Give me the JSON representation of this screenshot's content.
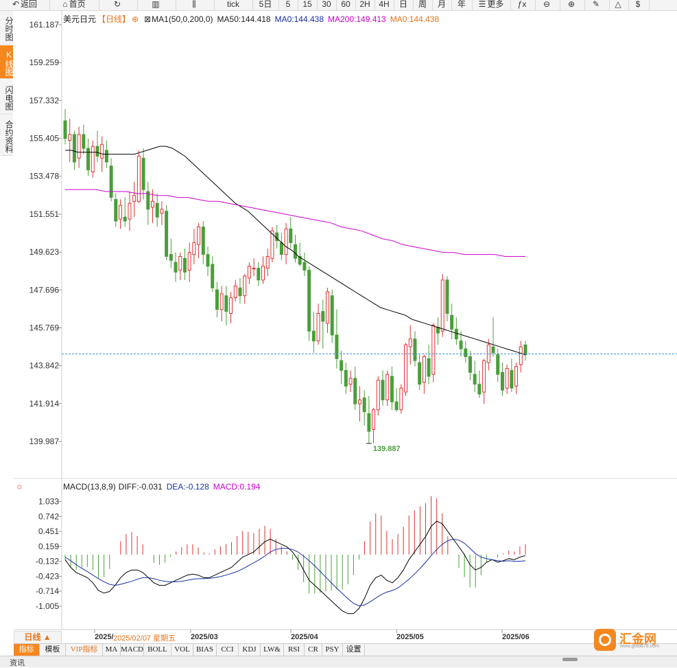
{
  "toolbar": {
    "buttons": [
      {
        "label": "返回",
        "icon": "back-icon"
      },
      {
        "label": "首页",
        "icon": "home-icon"
      },
      {
        "label": "",
        "icon": "refresh-icon"
      },
      {
        "label": "",
        "icon": "candlestick-icon"
      },
      {
        "label": "",
        "icon": "kline-icon"
      },
      {
        "label": "tick",
        "icon": ""
      },
      {
        "label": "5日",
        "icon": ""
      },
      {
        "label": "5",
        "icon": ""
      },
      {
        "label": "15",
        "icon": ""
      },
      {
        "label": "30",
        "icon": ""
      },
      {
        "label": "60",
        "icon": ""
      },
      {
        "label": "2H",
        "icon": ""
      },
      {
        "label": "4H",
        "icon": ""
      },
      {
        "label": "日",
        "icon": ""
      },
      {
        "label": "周",
        "icon": ""
      },
      {
        "label": "月",
        "icon": ""
      },
      {
        "label": "年",
        "icon": ""
      },
      {
        "label": "更多",
        "icon": "menu-icon"
      },
      {
        "label": "",
        "icon": "fx-icon"
      },
      {
        "label": "",
        "icon": "zoom-out-icon"
      },
      {
        "label": "",
        "icon": "zoom-in-icon"
      },
      {
        "label": "",
        "icon": "draw-line-icon"
      },
      {
        "label": "",
        "icon": "triangle-icon"
      },
      {
        "label": "",
        "icon": "dollar-icon"
      }
    ]
  },
  "sidebar": {
    "tabs": [
      {
        "label": "分时图",
        "active": false
      },
      {
        "label": "K线图",
        "active": true
      },
      {
        "label": "闪电图",
        "active": false
      },
      {
        "label": "合约资料",
        "active": false
      }
    ]
  },
  "main_legend": {
    "symbol": "美元日元",
    "period": "【日线】",
    "ma_params": "MA1(50,0,200,0)",
    "ma50": "MA50:144.418",
    "ma0": "MA0:144.438",
    "ma200": "MA200:149.413",
    "ma0b": "MA0:144.438"
  },
  "macd_legend": {
    "params": "MACD(13,8,9)",
    "diff": "DIFF:-0.031",
    "dea": "DEA:-0.128",
    "macd": "MACD:0.194"
  },
  "bottom": {
    "period_label": "日线 ▲",
    "date_tip": "2025/02/07 星期五",
    "indicator_tabs": [
      "指标",
      "模板",
      "VIP指标",
      "MA",
      "MACD",
      "BOLL",
      "VOL",
      "BIAS",
      "CCI",
      "KDJ",
      "LW&",
      "RSI",
      "CR",
      "PSY",
      "设置"
    ],
    "logo_text": "汇金网",
    "logo_url": "www.gold678.com",
    "status_text": "资讯"
  },
  "chart_data": [
    {
      "type": "candlestick",
      "title": "美元日元 日线",
      "y_ticks": [
        "161.187",
        "159.259",
        "157.332",
        "155.405",
        "153.478",
        "151.551",
        "149.623",
        "147.696",
        "145.769",
        "143.842",
        "141.914",
        "139.987"
      ],
      "ylim": [
        139.987,
        161.187
      ],
      "x_ticks": [
        "2025/02",
        "2025/03",
        "2025/04",
        "2025/05",
        "2025/06"
      ],
      "last_price": 144.438,
      "low_annotation": {
        "label": "139.887",
        "value": 139.887
      },
      "colors": {
        "up": "#e03030",
        "down": "#4a9e3b",
        "ma50": "#000000",
        "ma200": "#cc00cc"
      },
      "candles": [
        [
          156.3,
          156.9,
          155.1,
          155.4
        ],
        [
          155.3,
          156.4,
          154.2,
          155.6
        ],
        [
          155.6,
          155.8,
          153.8,
          154.2
        ],
        [
          154.4,
          156.0,
          153.9,
          155.6
        ],
        [
          155.6,
          156.1,
          154.6,
          154.9
        ],
        [
          154.9,
          155.4,
          153.5,
          153.8
        ],
        [
          153.7,
          155.3,
          153.4,
          155.0
        ],
        [
          155.0,
          155.8,
          154.2,
          154.5
        ],
        [
          154.4,
          155.5,
          153.7,
          155.1
        ],
        [
          154.8,
          155.3,
          153.9,
          154.2
        ],
        [
          154.0,
          154.4,
          152.2,
          152.4
        ],
        [
          152.3,
          152.6,
          150.9,
          151.2
        ],
        [
          151.3,
          152.3,
          150.8,
          152.0
        ],
        [
          151.4,
          152.4,
          150.9,
          151.2
        ],
        [
          151.3,
          152.7,
          150.7,
          152.1
        ],
        [
          152.2,
          153.2,
          151.4,
          152.5
        ],
        [
          152.2,
          154.8,
          152.1,
          154.5
        ],
        [
          154.4,
          154.9,
          152.3,
          152.8
        ],
        [
          152.7,
          153.2,
          151.0,
          151.8
        ],
        [
          151.9,
          152.8,
          151.1,
          152.2
        ],
        [
          152.1,
          152.6,
          150.9,
          151.4
        ],
        [
          151.6,
          152.2,
          151.0,
          151.8
        ],
        [
          151.7,
          152.0,
          149.2,
          149.4
        ],
        [
          149.5,
          150.3,
          148.8,
          149.2
        ],
        [
          149.1,
          149.6,
          148.1,
          148.6
        ],
        [
          148.7,
          149.6,
          148.2,
          149.4
        ],
        [
          149.3,
          149.8,
          148.2,
          148.6
        ],
        [
          148.7,
          150.1,
          148.1,
          149.6
        ],
        [
          149.5,
          150.8,
          149.0,
          150.1
        ],
        [
          150.0,
          151.1,
          149.3,
          150.9
        ],
        [
          150.9,
          151.2,
          149.0,
          149.5
        ],
        [
          149.5,
          149.9,
          148.4,
          148.9
        ],
        [
          149.0,
          149.4,
          147.6,
          147.8
        ],
        [
          147.7,
          148.1,
          146.3,
          146.7
        ],
        [
          146.7,
          147.9,
          146.1,
          147.5
        ],
        [
          147.4,
          147.9,
          145.9,
          146.6
        ],
        [
          146.5,
          147.6,
          146.0,
          147.3
        ],
        [
          147.3,
          148.2,
          147.1,
          147.9
        ],
        [
          147.8,
          148.3,
          147.0,
          147.4
        ],
        [
          147.4,
          148.5,
          147.0,
          148.4
        ],
        [
          148.3,
          149.1,
          148.0,
          148.9
        ],
        [
          148.8,
          149.3,
          148.4,
          148.8
        ],
        [
          148.8,
          149.1,
          147.9,
          148.2
        ],
        [
          148.2,
          149.4,
          148.0,
          148.9
        ],
        [
          148.8,
          149.8,
          148.4,
          149.4
        ],
        [
          149.3,
          150.9,
          149.1,
          150.7
        ],
        [
          150.6,
          151.0,
          149.8,
          150.2
        ],
        [
          150.1,
          150.6,
          149.2,
          149.5
        ],
        [
          149.5,
          151.1,
          149.0,
          150.8
        ],
        [
          150.8,
          151.4,
          149.8,
          150.1
        ],
        [
          150.0,
          150.5,
          149.1,
          149.3
        ],
        [
          149.4,
          150.1,
          148.9,
          149.0
        ],
        [
          149.1,
          149.6,
          148.4,
          148.7
        ],
        [
          148.7,
          148.9,
          145.1,
          145.6
        ],
        [
          145.6,
          146.6,
          144.5,
          145.1
        ],
        [
          145.1,
          147.0,
          144.9,
          146.5
        ],
        [
          146.6,
          147.2,
          144.7,
          146.1
        ],
        [
          146.0,
          147.8,
          145.5,
          147.6
        ],
        [
          147.4,
          147.7,
          145.0,
          145.4
        ],
        [
          145.4,
          146.7,
          143.7,
          144.2
        ],
        [
          144.1,
          144.6,
          142.9,
          143.6
        ],
        [
          143.6,
          144.0,
          142.4,
          142.8
        ],
        [
          142.9,
          143.6,
          142.5,
          143.2
        ],
        [
          143.2,
          143.8,
          141.6,
          141.9
        ],
        [
          141.9,
          142.8,
          141.0,
          142.1
        ],
        [
          142.2,
          142.6,
          140.8,
          141.5
        ],
        [
          141.4,
          142.3,
          139.9,
          140.5
        ],
        [
          140.6,
          141.7,
          139.9,
          141.6
        ],
        [
          141.6,
          143.3,
          141.3,
          143.1
        ],
        [
          143.1,
          143.6,
          141.8,
          142.1
        ],
        [
          142.1,
          143.6,
          141.8,
          143.4
        ],
        [
          143.3,
          143.8,
          141.6,
          142.0
        ],
        [
          142.0,
          142.7,
          141.5,
          141.6
        ],
        [
          141.6,
          142.9,
          141.4,
          142.7
        ],
        [
          142.5,
          145.0,
          142.3,
          144.9
        ],
        [
          144.8,
          145.9,
          143.9,
          145.2
        ],
        [
          145.2,
          145.6,
          143.8,
          144.1
        ],
        [
          144.0,
          144.4,
          142.6,
          142.9
        ],
        [
          143.0,
          144.4,
          142.4,
          144.3
        ],
        [
          144.2,
          144.9,
          142.9,
          143.3
        ],
        [
          143.4,
          146.0,
          143.0,
          145.9
        ],
        [
          145.8,
          146.3,
          144.9,
          145.5
        ],
        [
          145.6,
          148.5,
          145.3,
          148.2
        ],
        [
          148.2,
          148.4,
          146.1,
          146.5
        ],
        [
          146.4,
          147.0,
          145.2,
          145.7
        ],
        [
          145.7,
          146.3,
          144.9,
          145.2
        ],
        [
          145.1,
          145.6,
          144.3,
          144.7
        ],
        [
          144.7,
          145.1,
          144.0,
          144.3
        ],
        [
          144.3,
          144.6,
          143.1,
          143.5
        ],
        [
          143.4,
          144.1,
          142.5,
          142.9
        ],
        [
          142.9,
          143.6,
          142.2,
          142.4
        ],
        [
          142.5,
          144.2,
          141.9,
          144.1
        ],
        [
          144.0,
          145.2,
          143.6,
          144.9
        ],
        [
          144.8,
          146.3,
          144.3,
          144.5
        ],
        [
          144.4,
          144.7,
          143.0,
          143.4
        ],
        [
          143.5,
          144.0,
          142.3,
          142.6
        ],
        [
          142.7,
          143.9,
          142.4,
          143.7
        ],
        [
          143.6,
          144.2,
          142.5,
          142.7
        ],
        [
          142.8,
          144.0,
          142.4,
          143.8
        ],
        [
          143.9,
          145.1,
          143.5,
          144.8
        ],
        [
          144.9,
          145.1,
          144.1,
          144.4
        ]
      ],
      "ma50": [
        154.8,
        154.8,
        154.7,
        154.7,
        154.7,
        154.7,
        154.6,
        154.6,
        154.6,
        154.6,
        154.6,
        154.6,
        154.7,
        154.8,
        154.9,
        155.0,
        155.0,
        154.9,
        154.7,
        154.5,
        154.2,
        153.9,
        153.6,
        153.3,
        153.0,
        152.7,
        152.4,
        152.1,
        151.9,
        151.7,
        151.4,
        151.1,
        150.8,
        150.5,
        150.2,
        149.9,
        149.7,
        149.4,
        149.2,
        149.0,
        148.8,
        148.6,
        148.4,
        148.2,
        148.0,
        147.8,
        147.6,
        147.4,
        147.2,
        147.0,
        146.8,
        146.7,
        146.6,
        146.5,
        146.4,
        146.2,
        146.1,
        146.0,
        145.9,
        145.8,
        145.7,
        145.6,
        145.5,
        145.4,
        145.3,
        145.2,
        145.1,
        145.0,
        144.9,
        144.8,
        144.7,
        144.6,
        144.5,
        144.4
      ],
      "ma200": [
        152.8,
        152.8,
        152.8,
        152.8,
        152.7,
        152.7,
        152.7,
        152.6,
        152.6,
        152.5,
        152.5,
        152.4,
        152.4,
        152.3,
        152.2,
        152.2,
        152.1,
        152.0,
        151.9,
        151.8,
        151.7,
        151.6,
        151.5,
        151.4,
        151.3,
        151.2,
        151.1,
        150.9,
        150.8,
        150.7,
        150.5,
        150.3,
        150.2,
        150.0,
        149.9,
        149.8,
        149.7,
        149.6,
        149.6,
        149.5,
        149.5,
        149.5,
        149.5,
        149.4,
        149.4,
        149.4
      ],
      "macd": {
        "y_ticks": [
          "1.033",
          "0.742",
          "0.451",
          "0.159",
          "-0.132",
          "-0.423",
          "-0.714",
          "-1.005"
        ],
        "ylim": [
          -1.3,
          1.2
        ],
        "diff": [
          -0.1,
          -0.25,
          -0.35,
          -0.4,
          -0.45,
          -0.55,
          -0.7,
          -0.75,
          -0.72,
          -0.6,
          -0.45,
          -0.35,
          -0.3,
          -0.3,
          -0.35,
          -0.45,
          -0.55,
          -0.6,
          -0.6,
          -0.55,
          -0.5,
          -0.45,
          -0.4,
          -0.38,
          -0.4,
          -0.45,
          -0.45,
          -0.4,
          -0.35,
          -0.3,
          -0.25,
          -0.15,
          -0.05,
          0.0,
          0.05,
          0.15,
          0.25,
          0.3,
          0.25,
          0.2,
          0.15,
          0.05,
          -0.1,
          -0.3,
          -0.5,
          -0.6,
          -0.7,
          -0.8,
          -0.9,
          -1.0,
          -1.1,
          -1.15,
          -1.15,
          -1.05,
          -0.85,
          -0.6,
          -0.45,
          -0.4,
          -0.5,
          -0.55,
          -0.45,
          -0.3,
          -0.1,
          0.05,
          0.2,
          0.35,
          0.55,
          0.65,
          0.6,
          0.45,
          0.3,
          0.15,
          0.0,
          -0.2,
          -0.3,
          -0.25,
          -0.15,
          -0.1,
          -0.15,
          -0.12,
          -0.08,
          -0.1,
          -0.05,
          -0.02
        ],
        "dea": [
          -0.05,
          -0.12,
          -0.2,
          -0.27,
          -0.33,
          -0.4,
          -0.47,
          -0.53,
          -0.58,
          -0.6,
          -0.58,
          -0.55,
          -0.52,
          -0.48,
          -0.45,
          -0.45,
          -0.47,
          -0.5,
          -0.52,
          -0.53,
          -0.53,
          -0.52,
          -0.5,
          -0.48,
          -0.47,
          -0.47,
          -0.46,
          -0.45,
          -0.43,
          -0.4,
          -0.37,
          -0.33,
          -0.28,
          -0.22,
          -0.16,
          -0.1,
          -0.03,
          0.05,
          0.1,
          0.12,
          0.12,
          0.1,
          0.05,
          -0.03,
          -0.12,
          -0.22,
          -0.33,
          -0.44,
          -0.55,
          -0.66,
          -0.76,
          -0.86,
          -0.95,
          -1.0,
          -0.98,
          -0.92,
          -0.85,
          -0.78,
          -0.73,
          -0.7,
          -0.65,
          -0.57,
          -0.48,
          -0.38,
          -0.27,
          -0.15,
          -0.02,
          0.1,
          0.2,
          0.27,
          0.3,
          0.28,
          0.22,
          0.12,
          0.02,
          -0.05,
          -0.08,
          -0.1,
          -0.12,
          -0.13,
          -0.12,
          -0.13,
          -0.13,
          -0.12
        ]
      }
    }
  ]
}
